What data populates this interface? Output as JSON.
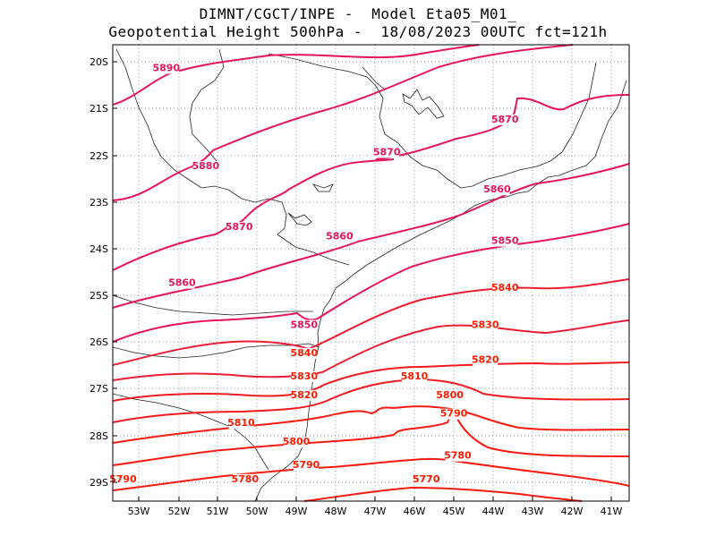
{
  "header": {
    "line1": "DIMNT/CGCT/INPE -  Model Eta05_M01_",
    "line2": "Geopotential Height 500hPa -  18/08/2023 00UTC fct=121h"
  },
  "map": {
    "lat_labels": [
      "20S",
      "21S",
      "22S",
      "23S",
      "24S",
      "25S",
      "26S",
      "27S",
      "28S",
      "29S"
    ],
    "lon_labels": [
      "53W",
      "52W",
      "51W",
      "50W",
      "49W",
      "48W",
      "47W",
      "46W",
      "45W",
      "44W",
      "43W",
      "42W",
      "41W"
    ],
    "extent": {
      "west": -53.7,
      "east": -40.5,
      "north": -19.7,
      "south": -29.4
    },
    "contour_color_high": "#e8145a",
    "contour_color_low": "#ff1a00"
  },
  "chart_data": {
    "type": "contour",
    "title": "Geopotential Height 500hPa",
    "contour_levels": [
      5890,
      5880,
      5870,
      5860,
      5850,
      5840,
      5830,
      5820,
      5810,
      5800,
      5790,
      5780,
      5770
    ],
    "contour_labels": [
      {
        "text": "5890",
        "lon": -52.3,
        "lat": -20.2
      },
      {
        "text": "5870",
        "lon": -43.7,
        "lat": -21.3
      },
      {
        "text": "5880",
        "lon": -51.3,
        "lat": -22.3
      },
      {
        "text": "5870",
        "lon": -46.7,
        "lat": -22.0
      },
      {
        "text": "5860",
        "lon": -43.9,
        "lat": -22.8
      },
      {
        "text": "5870",
        "lon": -50.45,
        "lat": -23.6
      },
      {
        "text": "5860",
        "lon": -47.9,
        "lat": -23.8
      },
      {
        "text": "5850",
        "lon": -43.7,
        "lat": -23.9
      },
      {
        "text": "5860",
        "lon": -51.9,
        "lat": -24.8
      },
      {
        "text": "5840",
        "lon": -43.7,
        "lat": -24.9
      },
      {
        "text": "5830",
        "lon": -44.2,
        "lat": -25.7
      },
      {
        "text": "5850",
        "lon": -48.8,
        "lat": -25.7
      },
      {
        "text": "5840",
        "lon": -48.8,
        "lat": -26.3
      },
      {
        "text": "5820",
        "lon": -44.2,
        "lat": -26.45
      },
      {
        "text": "5830",
        "lon": -48.8,
        "lat": -26.8
      },
      {
        "text": "5810",
        "lon": -46.0,
        "lat": -26.8
      },
      {
        "text": "5820",
        "lon": -48.8,
        "lat": -27.2
      },
      {
        "text": "5800",
        "lon": -45.1,
        "lat": -27.2
      },
      {
        "text": "5790",
        "lon": -45.0,
        "lat": -27.6
      },
      {
        "text": "5810",
        "lon": -50.4,
        "lat": -27.8
      },
      {
        "text": "5800",
        "lon": -49.0,
        "lat": -28.2
      },
      {
        "text": "5790",
        "lon": -48.75,
        "lat": -28.7
      },
      {
        "text": "5780",
        "lon": -44.9,
        "lat": -28.5
      },
      {
        "text": "5790",
        "lon": -53.4,
        "lat": -29.0
      },
      {
        "text": "5780",
        "lon": -50.3,
        "lat": -29.0
      },
      {
        "text": "5770",
        "lon": -45.7,
        "lat": -29.0
      }
    ]
  }
}
